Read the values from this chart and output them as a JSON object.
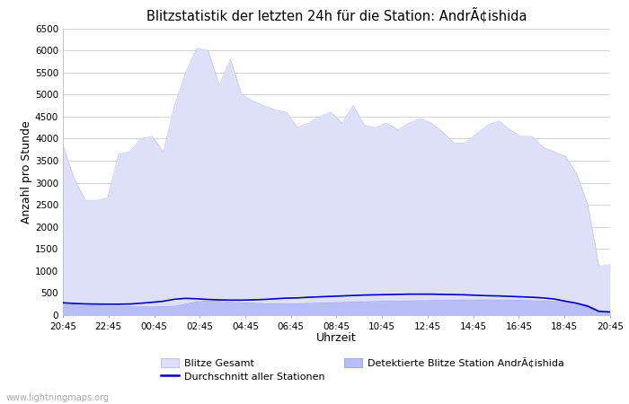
{
  "title": "Blitzstatistik der letzten 24h für die Station: AndrÃ¢ishida",
  "xlabel": "Uhrzeit",
  "ylabel": "Anzahl pro Stunde",
  "xlabels": [
    "20:45",
    "22:45",
    "00:45",
    "02:45",
    "04:45",
    "06:45",
    "08:45",
    "10:45",
    "12:45",
    "14:45",
    "16:45",
    "18:45",
    "20:45"
  ],
  "ylim": [
    0,
    6500
  ],
  "yticks": [
    0,
    500,
    1000,
    1500,
    2000,
    2500,
    3000,
    3500,
    4000,
    4500,
    5000,
    5500,
    6000,
    6500
  ],
  "blitze_gesamt": [
    3850,
    3100,
    2600,
    2600,
    2650,
    3650,
    3700,
    4000,
    4050,
    3700,
    4750,
    5500,
    6050,
    6000,
    5200,
    5800,
    5000,
    4850,
    4750,
    4650,
    4600,
    4250,
    4350,
    4500,
    4600,
    4350,
    4750,
    4300,
    4250,
    4350,
    4200,
    4350,
    4450,
    4350,
    4150,
    3900,
    3900,
    4100,
    4300,
    4400,
    4200,
    4050,
    4050,
    3800,
    3700,
    3600,
    3200,
    2500,
    1100,
    1150
  ],
  "blitze_station": [
    250,
    230,
    220,
    210,
    200,
    200,
    190,
    185,
    185,
    190,
    200,
    250,
    300,
    320,
    310,
    290,
    280,
    270,
    260,
    260,
    255,
    255,
    265,
    270,
    280,
    285,
    295,
    300,
    310,
    315,
    315,
    320,
    325,
    330,
    330,
    335,
    340,
    340,
    345,
    340,
    340,
    335,
    325,
    315,
    310,
    300,
    275,
    230,
    100,
    80
  ],
  "durchschnitt": [
    280,
    265,
    255,
    250,
    248,
    248,
    252,
    270,
    290,
    315,
    360,
    380,
    370,
    355,
    345,
    340,
    340,
    345,
    355,
    370,
    385,
    390,
    405,
    415,
    425,
    435,
    445,
    455,
    460,
    465,
    470,
    475,
    475,
    475,
    470,
    465,
    460,
    450,
    440,
    435,
    425,
    415,
    405,
    390,
    365,
    315,
    270,
    200,
    85,
    70
  ],
  "color_gesamt_fill": "#dde0f8",
  "color_station_fill": "#b8bef5",
  "color_durchschnitt": "#0000bb",
  "background_color": "#ffffff",
  "grid_color": "#cccccc",
  "watermark": "www.lightningmaps.org",
  "legend_gesamt": "Blitze Gesamt",
  "legend_station": "Detektierte Blitze Station AndrÃ¢ishida",
  "legend_durchschnitt": "Durchschnitt aller Stationen"
}
